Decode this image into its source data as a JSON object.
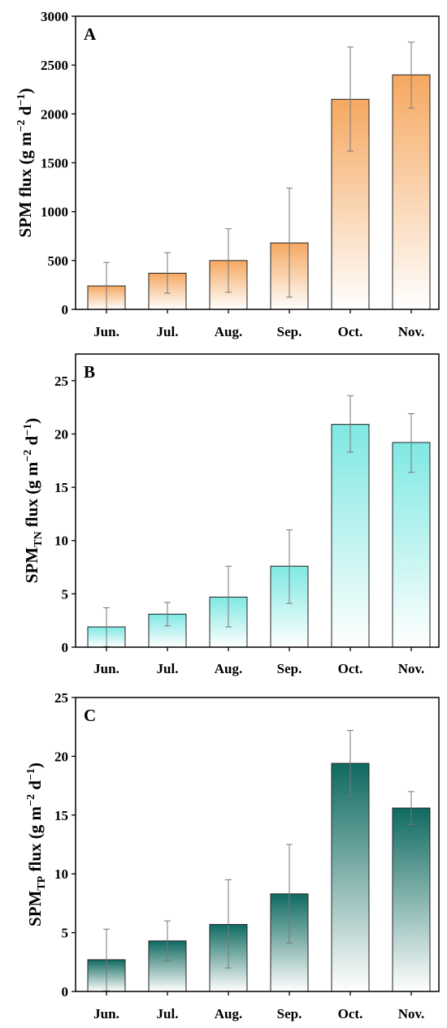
{
  "chart_data": [
    {
      "panel": "A",
      "type": "bar",
      "categories": [
        "Jun.",
        "Jul.",
        "Aug.",
        "Sep.",
        "Oct.",
        "Nov."
      ],
      "values": [
        240,
        370,
        500,
        680,
        2150,
        2400
      ],
      "error_low": [
        0,
        165,
        175,
        125,
        1620,
        2060
      ],
      "error_high": [
        480,
        580,
        825,
        1240,
        2685,
        2735
      ],
      "ylabel": {
        "main": "SPM flux (g m",
        "sup1": "−2",
        "mid": " d",
        "sup2": "−1",
        "end": ")"
      },
      "ylim": [
        0,
        3000
      ],
      "yticks": [
        0,
        500,
        1000,
        1500,
        2000,
        2500,
        3000
      ],
      "color": "#f5a860",
      "grid": false
    },
    {
      "panel": "B",
      "type": "bar",
      "categories": [
        "Jun.",
        "Jul.",
        "Aug.",
        "Sep.",
        "Oct.",
        "Nov."
      ],
      "values": [
        1.9,
        3.1,
        4.7,
        7.6,
        20.9,
        19.2
      ],
      "error_low": [
        0.05,
        2.0,
        1.9,
        4.1,
        18.3,
        16.4
      ],
      "error_high": [
        3.7,
        4.2,
        7.6,
        11.0,
        23.6,
        21.9
      ],
      "ylabel": {
        "main": "SPM",
        "sub": "TN",
        "rest": " flux (g m",
        "sup1": "−2",
        "mid": " d",
        "sup2": "−1",
        "end": ")"
      },
      "ylim": [
        0,
        27.5
      ],
      "yticks": [
        0,
        5,
        10,
        15,
        20,
        25
      ],
      "color": "#7fe8e2",
      "grid": false
    },
    {
      "panel": "C",
      "type": "bar",
      "categories": [
        "Jun.",
        "Jul.",
        "Aug.",
        "Sep.",
        "Oct.",
        "Nov."
      ],
      "values": [
        2.7,
        4.3,
        5.7,
        8.3,
        19.4,
        15.6
      ],
      "error_low": [
        0.05,
        2.6,
        2.0,
        4.1,
        16.6,
        14.2
      ],
      "error_high": [
        5.3,
        6.0,
        9.5,
        12.5,
        22.2,
        17.0
      ],
      "ylabel": {
        "main": "SPM",
        "sub": "TP",
        "rest": " flux (g m",
        "sup1": "−2",
        "mid": " d",
        "sup2": "−1",
        "end": ")"
      },
      "ylim": [
        0,
        25
      ],
      "yticks": [
        0,
        5,
        10,
        15,
        20,
        25
      ],
      "color": "#0f6a60",
      "grid": false
    }
  ]
}
